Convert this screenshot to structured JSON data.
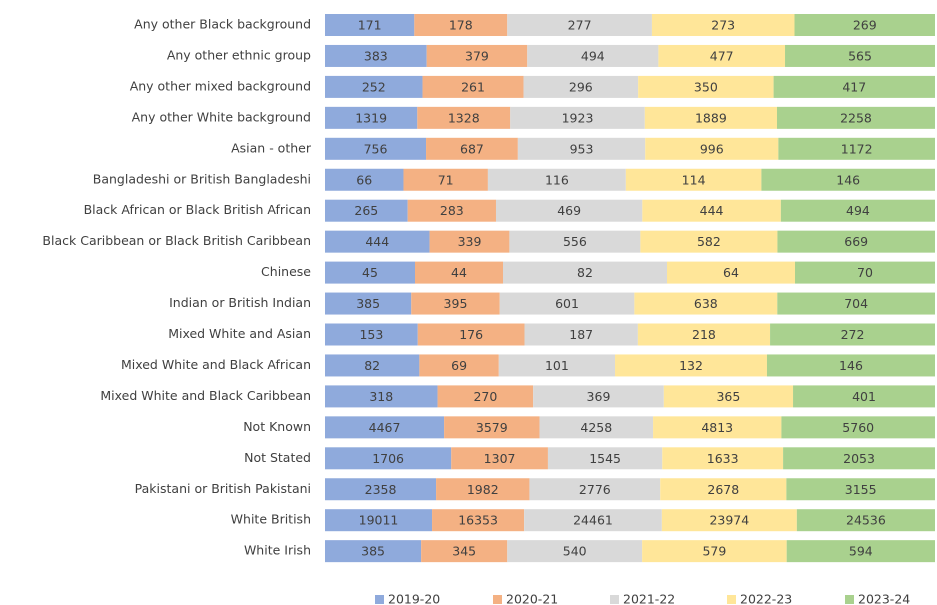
{
  "chart_data": {
    "type": "bar",
    "orientation": "horizontal",
    "stacking": "percent",
    "categories": [
      "Any other Black background",
      "Any other ethnic group",
      "Any other mixed background",
      "Any other White background",
      "Asian - other",
      "Bangladeshi or British Bangladeshi",
      "Black African or Black British African",
      "Black Caribbean or Black British Caribbean",
      "Chinese",
      "Indian or British Indian",
      "Mixed White and Asian",
      "Mixed White and Black African",
      "Mixed White and Black Caribbean",
      "Not Known",
      "Not Stated",
      "Pakistani or British Pakistani",
      "White British",
      "White Irish"
    ],
    "series": [
      {
        "name": "2019-20",
        "color": "#8faadc",
        "values": [
          171,
          383,
          252,
          1319,
          756,
          66,
          265,
          444,
          45,
          385,
          153,
          82,
          318,
          4467,
          1706,
          2358,
          19011,
          385
        ]
      },
      {
        "name": "2020-21",
        "color": "#f4b183",
        "values": [
          178,
          379,
          261,
          1328,
          687,
          71,
          283,
          339,
          44,
          395,
          176,
          69,
          270,
          3579,
          1307,
          1982,
          16353,
          345
        ]
      },
      {
        "name": "2021-22",
        "color": "#d9d9d9",
        "values": [
          277,
          494,
          296,
          1923,
          953,
          116,
          469,
          556,
          82,
          601,
          187,
          101,
          369,
          4258,
          1545,
          2776,
          24461,
          540
        ]
      },
      {
        "name": "2022-23",
        "color": "#ffe699",
        "values": [
          273,
          477,
          350,
          1889,
          996,
          114,
          444,
          582,
          64,
          638,
          218,
          132,
          365,
          4813,
          1633,
          2678,
          23974,
          579
        ]
      },
      {
        "name": "2023-24",
        "color": "#a9d18e",
        "values": [
          269,
          565,
          417,
          2258,
          1172,
          146,
          494,
          669,
          70,
          704,
          272,
          146,
          401,
          5760,
          2053,
          3155,
          24536,
          594
        ]
      }
    ],
    "data_labels": true,
    "legend": "bottom"
  }
}
